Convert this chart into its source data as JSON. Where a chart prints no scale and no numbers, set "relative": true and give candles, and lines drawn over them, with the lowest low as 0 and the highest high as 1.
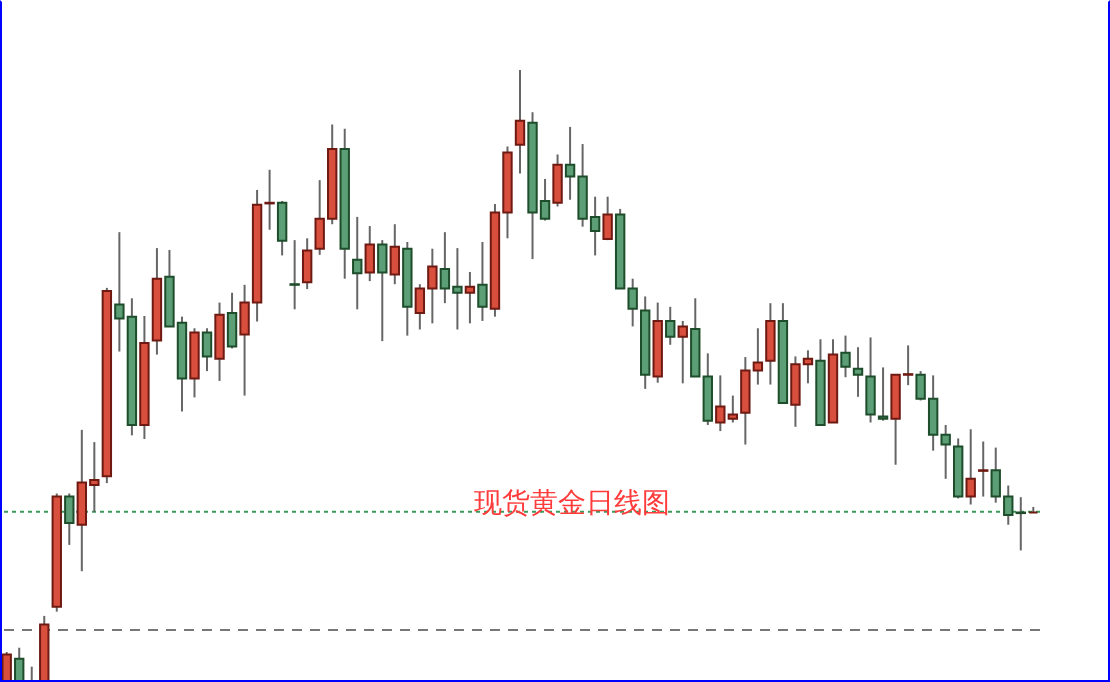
{
  "chart_data": {
    "type": "candlestick",
    "relative": true,
    "annotations": [
      "现货黄金日线图"
    ],
    "ref_lines": [
      {
        "axis": "y",
        "value": 0.278,
        "color": "#3a9a5a",
        "line_style": "dotted"
      },
      {
        "axis": "y",
        "value": 0.085,
        "color": "#777777",
        "line_style": "dashed"
      }
    ],
    "categories": [
      null,
      null,
      null,
      null,
      null,
      null,
      null,
      null,
      null,
      null,
      null,
      null,
      null,
      null,
      null,
      null,
      null,
      null,
      null,
      null,
      null,
      null,
      null,
      null,
      null,
      null,
      null,
      null,
      null,
      null,
      null,
      null,
      null,
      null,
      null,
      null,
      null,
      null,
      null,
      null,
      null,
      null,
      null,
      null,
      null,
      null,
      null,
      null,
      null,
      null,
      null,
      null,
      null,
      null,
      null,
      null,
      null,
      null,
      null,
      null,
      null,
      null,
      null,
      null,
      null,
      null,
      null,
      null,
      null,
      null,
      null,
      null,
      null,
      null,
      null,
      null,
      null,
      null,
      null,
      null,
      null,
      null,
      null
    ],
    "ohlc": [
      [
        0,
        0.049,
        0,
        0.045
      ],
      [
        0.038,
        0.056,
        0,
        0
      ],
      [
        0,
        0.025,
        0,
        0
      ],
      [
        0,
        0.108,
        0,
        0.094
      ],
      [
        0.123,
        0.308,
        0.115,
        0.303
      ],
      [
        0.303,
        0.308,
        0.224,
        0.26
      ],
      [
        0.257,
        0.412,
        0.181,
        0.326
      ],
      [
        0.322,
        0.392,
        0.278,
        0.33
      ],
      [
        0.336,
        0.644,
        0.325,
        0.639
      ],
      [
        0.617,
        0.735,
        0.54,
        0.594
      ],
      [
        0.597,
        0.627,
        0.403,
        0.42
      ],
      [
        0.42,
        0.598,
        0.397,
        0.554
      ],
      [
        0.558,
        0.709,
        0.535,
        0.659
      ],
      [
        0.662,
        0.706,
        0.581,
        0.581
      ],
      [
        0.587,
        0.597,
        0.442,
        0.496
      ],
      [
        0.496,
        0.578,
        0.465,
        0.571
      ],
      [
        0.571,
        0.578,
        0.508,
        0.532
      ],
      [
        0.528,
        0.62,
        0.492,
        0.6
      ],
      [
        0.603,
        0.636,
        0.545,
        0.548
      ],
      [
        0.568,
        0.649,
        0.468,
        0.62
      ],
      [
        0.62,
        0.804,
        0.589,
        0.78
      ],
      [
        0.782,
        0.837,
        0.739,
        0.783
      ],
      [
        0.783,
        0.786,
        0.697,
        0.721
      ],
      [
        0.65,
        0.722,
        0.609,
        0.649
      ],
      [
        0.653,
        0.725,
        0.642,
        0.705
      ],
      [
        0.708,
        0.82,
        0.698,
        0.757
      ],
      [
        0.757,
        0.911,
        0.748,
        0.871
      ],
      [
        0.871,
        0.904,
        0.659,
        0.708
      ],
      [
        0.69,
        0.76,
        0.609,
        0.668
      ],
      [
        0.669,
        0.745,
        0.655,
        0.715
      ],
      [
        0.715,
        0.722,
        0.557,
        0.669
      ],
      [
        0.666,
        0.748,
        0.65,
        0.711
      ],
      [
        0.708,
        0.719,
        0.566,
        0.613
      ],
      [
        0.603,
        0.65,
        0.576,
        0.643
      ],
      [
        0.643,
        0.708,
        0.586,
        0.679
      ],
      [
        0.675,
        0.735,
        0.619,
        0.643
      ],
      [
        0.646,
        0.709,
        0.576,
        0.636
      ],
      [
        0.636,
        0.67,
        0.586,
        0.646
      ],
      [
        0.649,
        0.719,
        0.59,
        0.613
      ],
      [
        0.61,
        0.781,
        0.597,
        0.767
      ],
      [
        0.767,
        0.875,
        0.725,
        0.865
      ],
      [
        0.878,
        1,
        0.831,
        0.917
      ],
      [
        0.914,
        0.931,
        0.691,
        0.767
      ],
      [
        0.786,
        0.822,
        0.754,
        0.757
      ],
      [
        0.783,
        0.862,
        0.777,
        0.845
      ],
      [
        0.845,
        0.907,
        0.788,
        0.826
      ],
      [
        0.826,
        0.879,
        0.744,
        0.757
      ],
      [
        0.76,
        0.793,
        0.697,
        0.737
      ],
      [
        0.724,
        0.793,
        0.722,
        0.764
      ],
      [
        0.764,
        0.773,
        0.643,
        0.643
      ],
      [
        0.643,
        0.659,
        0.581,
        0.61
      ],
      [
        0.607,
        0.63,
        0.479,
        0.502
      ],
      [
        0.499,
        0.62,
        0.489,
        0.59
      ],
      [
        0.59,
        0.613,
        0.551,
        0.564
      ],
      [
        0.564,
        0.59,
        0.488,
        0.581
      ],
      [
        0.577,
        0.627,
        0.499,
        0.499
      ],
      [
        0.499,
        0.537,
        0.42,
        0.427
      ],
      [
        0.424,
        0.501,
        0.41,
        0.45
      ],
      [
        0.43,
        0.468,
        0.424,
        0.437
      ],
      [
        0.44,
        0.531,
        0.388,
        0.509
      ],
      [
        0.509,
        0.578,
        0.486,
        0.522
      ],
      [
        0.525,
        0.619,
        0.486,
        0.59
      ],
      [
        0.59,
        0.619,
        0.456,
        0.456
      ],
      [
        0.453,
        0.532,
        0.417,
        0.519
      ],
      [
        0.519,
        0.542,
        0.488,
        0.528
      ],
      [
        0.525,
        0.56,
        0.42,
        0.42
      ],
      [
        0.424,
        0.56,
        0.424,
        0.535
      ],
      [
        0.538,
        0.566,
        0.498,
        0.515
      ],
      [
        0.512,
        0.547,
        0.466,
        0.502
      ],
      [
        0.499,
        0.563,
        0.424,
        0.437
      ],
      [
        0.434,
        0.514,
        0.427,
        0.43
      ],
      [
        0.43,
        0.502,
        0.355,
        0.502
      ],
      [
        0.502,
        0.55,
        0.485,
        0.503
      ],
      [
        0.502,
        0.508,
        0.46,
        0.463
      ],
      [
        0.463,
        0.501,
        0.378,
        0.404
      ],
      [
        0.404,
        0.42,
        0.332,
        0.388
      ],
      [
        0.385,
        0.398,
        0.3,
        0.303
      ],
      [
        0.303,
        0.413,
        0.29,
        0.332
      ],
      [
        0.345,
        0.393,
        0.303,
        0.346
      ],
      [
        0.346,
        0.383,
        0.293,
        0.303
      ],
      [
        0.303,
        0.321,
        0.257,
        0.273
      ],
      [
        0.277,
        0.302,
        0.215,
        0.276
      ],
      [
        0.277,
        0.286,
        0.276,
        0.277
      ]
    ]
  }
}
